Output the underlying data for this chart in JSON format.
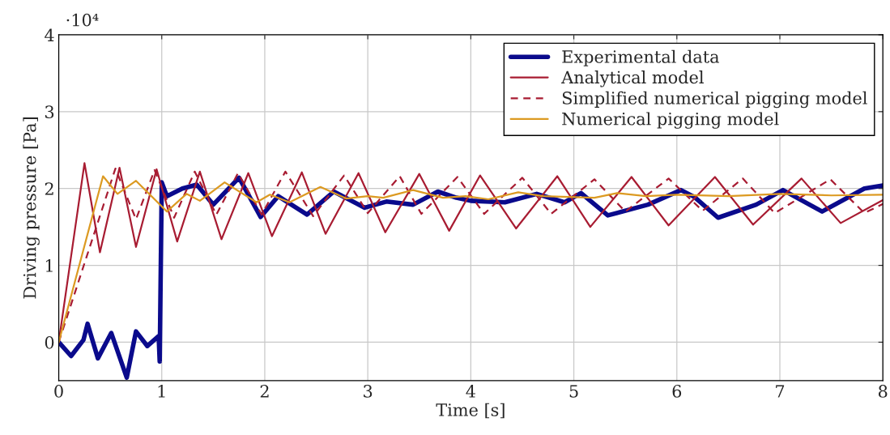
{
  "chart_data": {
    "type": "line",
    "xlabel": "Time [s]",
    "ylabel": "Driving pressure [Pa]",
    "annotations": [
      "·10⁴"
    ],
    "xlim": [
      0,
      8
    ],
    "ylim": [
      -0.5,
      4
    ],
    "xticks": [
      0,
      1,
      2,
      3,
      4,
      5,
      6,
      7,
      8
    ],
    "yticks": [
      0,
      1,
      2,
      3,
      4
    ],
    "grid": true,
    "legend": "top right",
    "marker": "none",
    "series": [
      {
        "name": "Experimental data",
        "color": "#0a0a8c",
        "line_style": "solid",
        "x": [
          0,
          0.12,
          0.24,
          0.28,
          0.38,
          0.51,
          0.66,
          0.75,
          0.86,
          0.97,
          0.98,
          1.0,
          1.05,
          1.2,
          1.34,
          1.5,
          1.75,
          1.96,
          2.13,
          2.41,
          2.67,
          2.97,
          3.18,
          3.44,
          3.68,
          3.86,
          4.0,
          4.33,
          4.64,
          4.91,
          5.07,
          5.33,
          5.72,
          6.04,
          6.17,
          6.4,
          6.77,
          7.03,
          7.41,
          7.82,
          8.0
        ],
        "values": [
          0,
          -0.18,
          0.03,
          0.24,
          -0.21,
          0.12,
          -0.46,
          0.14,
          -0.05,
          0.08,
          -0.25,
          2.08,
          1.9,
          2.0,
          2.05,
          1.79,
          2.14,
          1.63,
          1.9,
          1.66,
          1.96,
          1.75,
          1.83,
          1.79,
          1.96,
          1.88,
          1.84,
          1.82,
          1.93,
          1.82,
          1.94,
          1.65,
          1.79,
          1.98,
          1.89,
          1.62,
          1.79,
          1.98,
          1.7,
          2.0,
          2.04
        ]
      },
      {
        "name": "Analytical model",
        "color": "#a81c32",
        "line_style": "solid",
        "x": [
          0,
          0.25,
          0.4,
          0.59,
          0.75,
          0.95,
          1.15,
          1.37,
          1.58,
          1.84,
          2.07,
          2.36,
          2.59,
          2.91,
          3.17,
          3.5,
          3.79,
          4.09,
          4.44,
          4.84,
          5.16,
          5.56,
          5.92,
          6.37,
          6.74,
          7.21,
          7.59,
          8.0
        ],
        "values": [
          0,
          2.33,
          1.17,
          2.27,
          1.24,
          2.25,
          1.31,
          2.22,
          1.34,
          2.2,
          1.38,
          2.21,
          1.41,
          2.2,
          1.43,
          2.19,
          1.45,
          2.17,
          1.48,
          2.16,
          1.5,
          2.15,
          1.52,
          2.15,
          1.53,
          2.13,
          1.55,
          1.85
        ]
      },
      {
        "name": "Simplified numerical pigging model",
        "color": "#a81c32",
        "line_style": "dashed",
        "x": [
          0,
          0.55,
          0.75,
          0.93,
          1.12,
          1.32,
          1.53,
          1.74,
          1.97,
          2.2,
          2.47,
          2.77,
          3.0,
          3.31,
          3.52,
          3.87,
          4.13,
          4.5,
          4.78,
          5.2,
          5.5,
          5.92,
          6.25,
          6.64,
          6.95,
          7.49,
          7.82,
          8.0
        ],
        "values": [
          0,
          2.26,
          1.6,
          2.24,
          1.62,
          2.22,
          1.66,
          2.2,
          1.66,
          2.22,
          1.64,
          2.17,
          1.68,
          2.16,
          1.67,
          2.15,
          1.67,
          2.14,
          1.67,
          2.12,
          1.7,
          2.13,
          1.71,
          2.13,
          1.68,
          2.12,
          1.68,
          1.8
        ]
      },
      {
        "name": "Numerical pigging model",
        "color": "#dc9a22",
        "line_style": "solid",
        "x": [
          0,
          0.43,
          0.57,
          0.75,
          1.05,
          1.24,
          1.37,
          1.61,
          1.92,
          2.05,
          2.24,
          2.54,
          2.79,
          3.0,
          3.15,
          3.44,
          3.73,
          3.95,
          4.17,
          4.46,
          4.7,
          5.2,
          5.42,
          5.7,
          6.0,
          6.5,
          7.0,
          7.5,
          8.0
        ],
        "values": [
          0,
          2.16,
          1.93,
          2.1,
          1.7,
          1.93,
          1.84,
          2.08,
          1.82,
          1.92,
          1.82,
          2.02,
          1.87,
          1.9,
          1.88,
          1.98,
          1.88,
          1.9,
          1.86,
          1.95,
          1.9,
          1.88,
          1.94,
          1.9,
          1.92,
          1.9,
          1.93,
          1.91,
          1.92
        ]
      }
    ]
  }
}
